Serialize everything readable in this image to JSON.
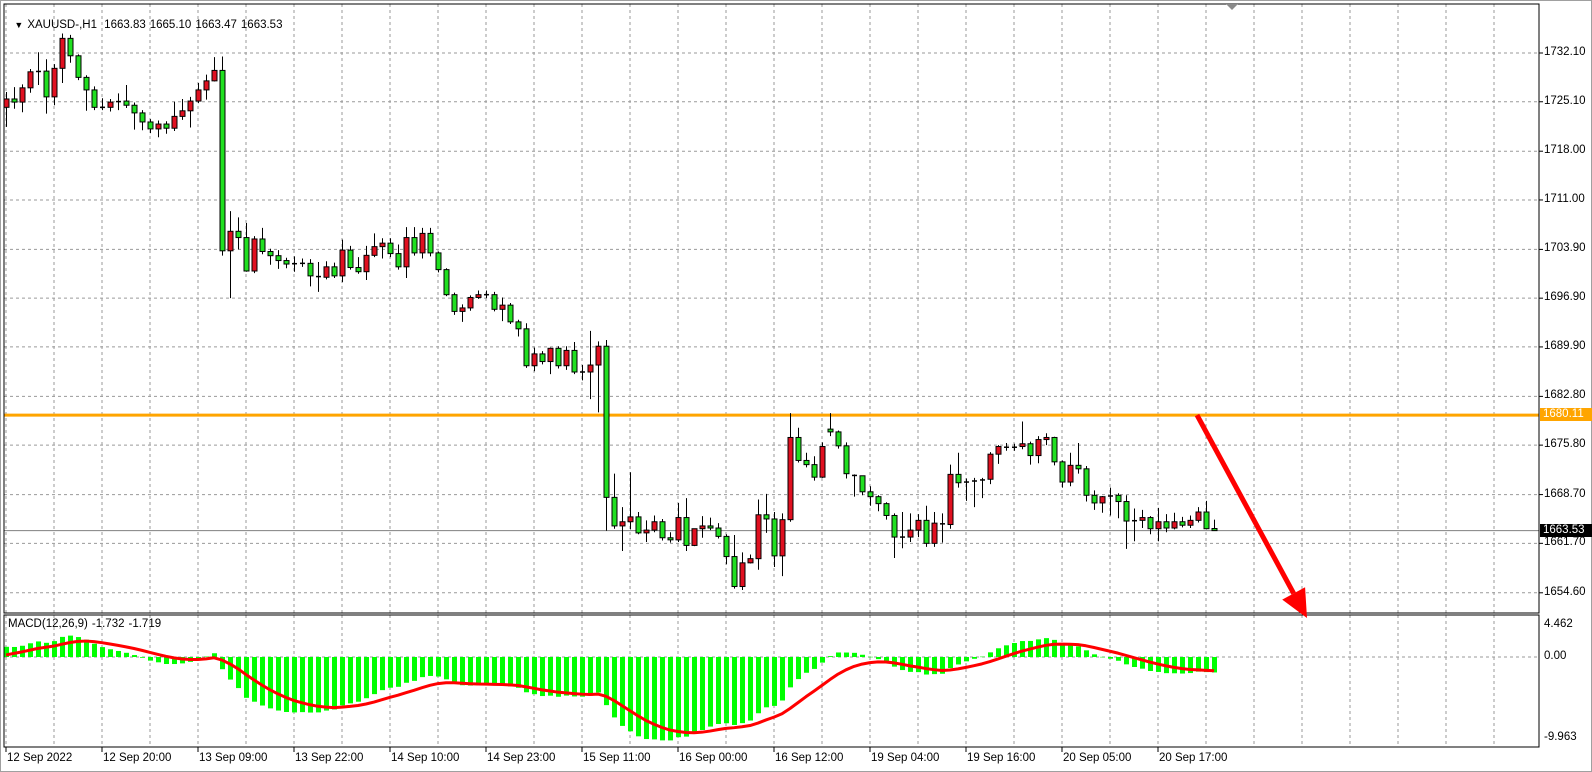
{
  "header": {
    "menu_icon": "triangle-down-icon",
    "symbol_timeframe": "XAUUSD-,H1",
    "open": "1663.83",
    "high": "1665.10",
    "low": "1663.47",
    "close": "1663.53"
  },
  "price_axis": {
    "labels": [
      "1732.10",
      "1725.10",
      "1718.00",
      "1711.00",
      "1703.90",
      "1696.90",
      "1689.90",
      "1682.80",
      "1675.80",
      "1668.70",
      "1661.70",
      "1654.60"
    ]
  },
  "levels": {
    "horizontal_line": {
      "price": 1680.11,
      "label": "1680.11",
      "color": "#FFA500"
    },
    "bid_line": {
      "price": 1663.53,
      "label": "1663.53",
      "color": "#808080"
    }
  },
  "annotation": {
    "type": "arrow",
    "direction": "down",
    "color": "#FF0000"
  },
  "macd": {
    "label": "MACD(12,26,9)",
    "main_value": "-1.732",
    "signal_value": "-1.719",
    "fast": 12,
    "slow": 26,
    "signal": 9,
    "axis_labels": [
      "4.462",
      "0.00",
      "-9.963"
    ],
    "range": [
      -9.963,
      4.462
    ],
    "histogram_color": "#00FF00",
    "signal_color": "#FF0000"
  },
  "time_axis": {
    "labels": [
      "12 Sep 2022",
      "12 Sep 20:00",
      "13 Sep 09:00",
      "13 Sep 22:00",
      "14 Sep 10:00",
      "14 Sep 23:00",
      "15 Sep 11:00",
      "16 Sep 00:00",
      "16 Sep 12:00",
      "19 Sep 04:00",
      "19 Sep 16:00",
      "20 Sep 05:00",
      "20 Sep 17:00"
    ]
  },
  "chart_data": {
    "type": "candlestick",
    "symbol": "XAUUSD-",
    "timeframe": "H1",
    "ylim": [
      1651.7,
      1739.1
    ],
    "grid": true,
    "colors": {
      "bull": "#E01020",
      "bear": "#20E020",
      "outline": "#000000"
    },
    "ohlc_fields": [
      "open",
      "high",
      "low",
      "close"
    ],
    "ohlc": [
      [
        1724.3,
        1726.5,
        1721.5,
        1725.5
      ],
      [
        1725.5,
        1727.2,
        1724.1,
        1725.05
      ],
      [
        1725.05,
        1727.6,
        1723.6,
        1727.1
      ],
      [
        1727.1,
        1729.8,
        1726.4,
        1729.4
      ],
      [
        1729.4,
        1732.2,
        1727.5,
        1729.5
      ],
      [
        1729.5,
        1731.2,
        1723.4,
        1725.8
      ],
      [
        1725.8,
        1730.5,
        1724.6,
        1729.9
      ],
      [
        1729.9,
        1734.9,
        1727.8,
        1734.2
      ],
      [
        1734.2,
        1734.7,
        1730.7,
        1731.7
      ],
      [
        1731.7,
        1731.9,
        1728.2,
        1728.6
      ],
      [
        1728.6,
        1728.9,
        1723.8,
        1726.8
      ],
      [
        1726.8,
        1727.3,
        1723.9,
        1724.3
      ],
      [
        1724.3,
        1725.6,
        1723.9,
        1724.3
      ],
      [
        1724.3,
        1725.5,
        1723.7,
        1725.05
      ],
      [
        1725.05,
        1726.3,
        1723.9,
        1725.2
      ],
      [
        1725.2,
        1727.5,
        1724.2,
        1724.6
      ],
      [
        1724.6,
        1725.0,
        1721.1,
        1723.5
      ],
      [
        1723.5,
        1723.9,
        1721.0,
        1722.2
      ],
      [
        1722.2,
        1722.6,
        1720.6,
        1721.2
      ],
      [
        1721.2,
        1722.4,
        1720.0,
        1721.9
      ],
      [
        1721.9,
        1722.3,
        1720.5,
        1721.3
      ],
      [
        1721.3,
        1725.1,
        1720.9,
        1723.0
      ],
      [
        1723.0,
        1725.5,
        1722.5,
        1723.8
      ],
      [
        1723.8,
        1725.8,
        1721.4,
        1725.2
      ],
      [
        1725.2,
        1727.8,
        1724.9,
        1726.8
      ],
      [
        1726.8,
        1729.0,
        1725.4,
        1728.1
      ],
      [
        1728.1,
        1731.5,
        1728.0,
        1729.6
      ],
      [
        1729.6,
        1731.6,
        1703.0,
        1703.7
      ],
      [
        1703.7,
        1709.4,
        1696.9,
        1706.5
      ],
      [
        1706.5,
        1708.5,
        1703.9,
        1705.6
      ],
      [
        1705.6,
        1707.7,
        1700.7,
        1700.8
      ],
      [
        1700.8,
        1705.8,
        1700.5,
        1705.4
      ],
      [
        1705.4,
        1707.0,
        1703.2,
        1703.6
      ],
      [
        1703.6,
        1704.0,
        1701.7,
        1703.0
      ],
      [
        1703.0,
        1703.8,
        1701.1,
        1702.3
      ],
      [
        1702.3,
        1702.7,
        1701.2,
        1701.8
      ],
      [
        1701.8,
        1702.9,
        1700.7,
        1701.9
      ],
      [
        1701.9,
        1702.6,
        1701.4,
        1701.9
      ],
      [
        1701.9,
        1702.5,
        1698.6,
        1700.1
      ],
      [
        1700.1,
        1702.1,
        1697.8,
        1699.9
      ],
      [
        1699.9,
        1702.2,
        1699.6,
        1701.4
      ],
      [
        1701.4,
        1702.0,
        1699.8,
        1700.1
      ],
      [
        1700.1,
        1705.3,
        1699.2,
        1703.8
      ],
      [
        1703.8,
        1704.4,
        1701.0,
        1701.3
      ],
      [
        1701.3,
        1702.8,
        1700.4,
        1700.7
      ],
      [
        1700.7,
        1704.4,
        1699.5,
        1703.05
      ],
      [
        1703.05,
        1706.2,
        1702.8,
        1704.3
      ],
      [
        1704.3,
        1705.5,
        1702.6,
        1704.8
      ],
      [
        1704.8,
        1705.5,
        1702.8,
        1703.3
      ],
      [
        1703.3,
        1704.6,
        1701.0,
        1701.4
      ],
      [
        1701.4,
        1707.1,
        1699.8,
        1705.6
      ],
      [
        1705.6,
        1707.1,
        1703.0,
        1703.4
      ],
      [
        1703.4,
        1707.0,
        1702.6,
        1706.2
      ],
      [
        1706.2,
        1707.0,
        1702.9,
        1703.4
      ],
      [
        1703.4,
        1703.6,
        1700.6,
        1701.0
      ],
      [
        1701.0,
        1701.2,
        1697.2,
        1697.4
      ],
      [
        1697.4,
        1697.7,
        1694.5,
        1695.0
      ],
      [
        1695.0,
        1696.0,
        1693.5,
        1695.5
      ],
      [
        1695.5,
        1697.3,
        1695.1,
        1697.0
      ],
      [
        1697.0,
        1698.0,
        1696.8,
        1697.4
      ],
      [
        1697.4,
        1698.0,
        1696.9,
        1697.4
      ],
      [
        1697.4,
        1697.8,
        1695.0,
        1695.3
      ],
      [
        1695.3,
        1697.0,
        1693.6,
        1695.9
      ],
      [
        1695.9,
        1696.2,
        1693.2,
        1693.5
      ],
      [
        1693.5,
        1693.8,
        1691.4,
        1692.5
      ],
      [
        1692.5,
        1693.3,
        1686.9,
        1687.2
      ],
      [
        1687.2,
        1689.8,
        1686.4,
        1688.9
      ],
      [
        1688.9,
        1689.3,
        1687.4,
        1687.8
      ],
      [
        1687.8,
        1689.8,
        1686.0,
        1689.7
      ],
      [
        1689.7,
        1690.0,
        1686.8,
        1687.2
      ],
      [
        1687.2,
        1690.0,
        1686.6,
        1689.4
      ],
      [
        1689.4,
        1690.6,
        1686.0,
        1686.3
      ],
      [
        1686.3,
        1687.3,
        1685.1,
        1686.3
      ],
      [
        1686.3,
        1692.2,
        1682.4,
        1687.3
      ],
      [
        1687.3,
        1690.7,
        1680.5,
        1690.0
      ],
      [
        1690.0,
        1690.9,
        1663.5,
        1668.3
      ],
      [
        1668.3,
        1671.7,
        1663.8,
        1664.2
      ],
      [
        1664.2,
        1666.9,
        1660.6,
        1664.8
      ],
      [
        1664.8,
        1671.9,
        1663.7,
        1665.5
      ],
      [
        1665.5,
        1666.2,
        1663.0,
        1663.2
      ],
      [
        1663.2,
        1665.0,
        1661.9,
        1663.6
      ],
      [
        1663.6,
        1665.7,
        1663.3,
        1664.8
      ],
      [
        1664.8,
        1665.2,
        1662.1,
        1662.5
      ],
      [
        1662.5,
        1663.3,
        1661.8,
        1662.2
      ],
      [
        1662.2,
        1667.5,
        1661.9,
        1665.4
      ],
      [
        1665.4,
        1668.2,
        1660.6,
        1661.4
      ],
      [
        1661.4,
        1663.8,
        1661.3,
        1663.8
      ],
      [
        1663.8,
        1665.6,
        1662.5,
        1664.2
      ],
      [
        1664.2,
        1665.4,
        1663.6,
        1663.9
      ],
      [
        1663.9,
        1664.6,
        1662.4,
        1662.7
      ],
      [
        1662.7,
        1663.0,
        1658.7,
        1659.8
      ],
      [
        1659.8,
        1662.9,
        1655.2,
        1655.5
      ],
      [
        1655.5,
        1660.4,
        1655.0,
        1658.9
      ],
      [
        1658.9,
        1660.1,
        1658.8,
        1659.5
      ],
      [
        1659.5,
        1668.0,
        1657.9,
        1665.8
      ],
      [
        1665.8,
        1668.8,
        1663.2,
        1665.2
      ],
      [
        1665.2,
        1666.2,
        1658.3,
        1659.9
      ],
      [
        1659.9,
        1666.0,
        1657.0,
        1665.1
      ],
      [
        1665.1,
        1680.4,
        1664.8,
        1676.9
      ],
      [
        1676.9,
        1678.3,
        1673.3,
        1673.6
      ],
      [
        1673.6,
        1674.7,
        1672.6,
        1673.0
      ],
      [
        1673.0,
        1674.2,
        1670.7,
        1671.2
      ],
      [
        1671.2,
        1676.2,
        1671.1,
        1675.6
      ],
      [
        1678.1,
        1680.4,
        1677.1,
        1677.7
      ],
      [
        1677.7,
        1677.9,
        1675.3,
        1675.7
      ],
      [
        1675.7,
        1676.2,
        1671.0,
        1671.7
      ],
      [
        1671.5,
        1671.6,
        1668.4,
        1671.4
      ],
      [
        1671.4,
        1671.4,
        1668.6,
        1669.1
      ],
      [
        1669.1,
        1669.9,
        1667.1,
        1668.4
      ],
      [
        1668.4,
        1668.6,
        1666.3,
        1667.4
      ],
      [
        1667.4,
        1667.6,
        1665.1,
        1665.7
      ],
      [
        1665.7,
        1666.0,
        1659.6,
        1662.6
      ],
      [
        1662.6,
        1666.2,
        1661.0,
        1662.6
      ],
      [
        1662.6,
        1666.0,
        1661.9,
        1663.6
      ],
      [
        1663.6,
        1665.9,
        1662.6,
        1665.0
      ],
      [
        1665.0,
        1667.1,
        1661.2,
        1661.7
      ],
      [
        1661.7,
        1666.2,
        1661.2,
        1664.6
      ],
      [
        1664.6,
        1666.0,
        1661.8,
        1664.4
      ],
      [
        1664.4,
        1673.0,
        1663.8,
        1671.6
      ],
      [
        1671.6,
        1674.7,
        1669.7,
        1670.4
      ],
      [
        1670.4,
        1671.0,
        1667.8,
        1670.6
      ],
      [
        1670.6,
        1671.1,
        1666.9,
        1670.7
      ],
      [
        1670.7,
        1671.1,
        1668.2,
        1670.9
      ],
      [
        1670.9,
        1674.8,
        1670.2,
        1674.5
      ],
      [
        1674.5,
        1675.8,
        1673.1,
        1675.6
      ],
      [
        1675.6,
        1676.1,
        1675.0,
        1675.4
      ],
      [
        1675.4,
        1676.0,
        1675.0,
        1675.6
      ],
      [
        1675.6,
        1679.2,
        1675.2,
        1676.0
      ],
      [
        1676.0,
        1676.3,
        1673.0,
        1674.3
      ],
      [
        1674.3,
        1677.1,
        1673.2,
        1676.6
      ],
      [
        1676.6,
        1677.5,
        1675.8,
        1676.9
      ],
      [
        1676.9,
        1677.0,
        1672.9,
        1673.4
      ],
      [
        1673.4,
        1673.6,
        1669.7,
        1670.5
      ],
      [
        1670.5,
        1674.7,
        1669.9,
        1672.9
      ],
      [
        1672.9,
        1676.1,
        1671.7,
        1672.4
      ],
      [
        1672.4,
        1672.8,
        1667.7,
        1668.6
      ],
      [
        1668.6,
        1669.3,
        1666.5,
        1667.5
      ],
      [
        1667.5,
        1668.5,
        1666.1,
        1668.4
      ],
      [
        1668.4,
        1669.7,
        1665.7,
        1668.6
      ],
      [
        1668.6,
        1668.9,
        1665.3,
        1667.7
      ],
      [
        1667.7,
        1668.6,
        1660.9,
        1664.9
      ],
      [
        1664.9,
        1666.7,
        1662.0,
        1665.0
      ],
      [
        1665.0,
        1666.5,
        1663.9,
        1665.4
      ],
      [
        1665.4,
        1665.6,
        1663.0,
        1663.8
      ],
      [
        1663.8,
        1666.8,
        1662.0,
        1664.8
      ],
      [
        1664.8,
        1665.9,
        1663.3,
        1663.9
      ],
      [
        1663.9,
        1666.1,
        1663.7,
        1664.8
      ],
      [
        1664.8,
        1665.5,
        1664.0,
        1664.3
      ],
      [
        1664.3,
        1665.7,
        1663.9,
        1665.0
      ],
      [
        1665.0,
        1666.9,
        1664.7,
        1666.2
      ],
      [
        1666.2,
        1667.8,
        1663.7,
        1663.8
      ],
      [
        1663.83,
        1665.1,
        1663.47,
        1663.53
      ]
    ]
  }
}
